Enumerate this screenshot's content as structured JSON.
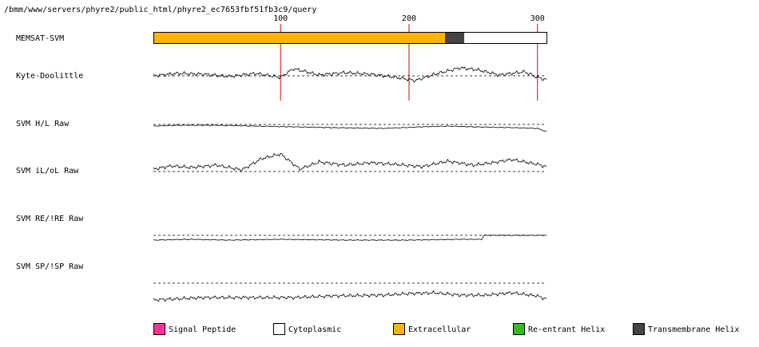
{
  "title": "/bmm/www/servers/phyre2/public_html/phyre2_ec7653fbf51fb3c9/query",
  "colors": {
    "signal_peptide": "#ff3399",
    "cytoplasmic": "#ffffff",
    "extracellular": "#ffb400",
    "reentrant_helix": "#33bb22",
    "transmembrane_helix": "#444444",
    "tick_line": "#dd0000"
  },
  "chart_data": {
    "type": "line",
    "sequence_length": 307,
    "x_ticks": [
      100,
      200,
      300
    ],
    "tracks": [
      {
        "name": "MEMSAT-SVM",
        "kind": "topology",
        "segments": [
          {
            "type": "Extracellular",
            "start": 1,
            "end": 227
          },
          {
            "type": "Transmembrane Helix",
            "start": 228,
            "end": 242
          },
          {
            "type": "Cytoplasmic",
            "start": 243,
            "end": 307
          }
        ]
      },
      {
        "name": "Kyte-Doolittle",
        "kind": "profile",
        "baseline": 0,
        "x": [
          1,
          20,
          40,
          60,
          80,
          100,
          110,
          130,
          150,
          170,
          190,
          205,
          220,
          240,
          255,
          270,
          290,
          300,
          307
        ],
        "values": [
          0,
          0.3,
          0.2,
          -0.1,
          0.3,
          -0.2,
          0.9,
          0.1,
          0.4,
          0.2,
          -0.2,
          -0.6,
          0.2,
          1.0,
          0.7,
          0.1,
          0.5,
          -0.2,
          -0.5
        ]
      },
      {
        "name": "SVM H/L Raw",
        "kind": "profile",
        "baseline": 0,
        "x": [
          1,
          20,
          50,
          80,
          110,
          140,
          180,
          210,
          230,
          250,
          280,
          300,
          307
        ],
        "values": [
          -0.2,
          -0.1,
          -0.1,
          -0.2,
          -0.3,
          -0.4,
          -0.5,
          -0.3,
          -0.2,
          -0.3,
          -0.4,
          -0.5,
          -0.9
        ]
      },
      {
        "name": "SVM iL/oL Raw",
        "kind": "profile",
        "baseline": 0,
        "x": [
          1,
          15,
          30,
          50,
          70,
          85,
          100,
          115,
          130,
          150,
          170,
          190,
          210,
          230,
          250,
          265,
          280,
          300,
          307
        ],
        "values": [
          0.3,
          0.7,
          0.5,
          0.8,
          0.2,
          1.6,
          2.2,
          0.3,
          1.2,
          0.8,
          1.1,
          0.9,
          0.6,
          1.3,
          0.8,
          1.1,
          1.5,
          0.9,
          0.6
        ]
      },
      {
        "name": "SVM RE/!RE Raw",
        "kind": "profile",
        "baseline": 0,
        "x": [
          1,
          30,
          60,
          100,
          150,
          200,
          240,
          257,
          258,
          307
        ],
        "values": [
          -0.6,
          -0.5,
          -0.6,
          -0.5,
          -0.6,
          -0.6,
          -0.5,
          -0.5,
          0.0,
          0.0
        ]
      },
      {
        "name": "SVM SP/!SP Raw",
        "kind": "profile",
        "baseline": 0,
        "x": [
          1,
          40,
          80,
          110,
          140,
          180,
          200,
          220,
          240,
          260,
          280,
          300,
          307
        ],
        "values": [
          -2.1,
          -1.8,
          -1.8,
          -1.8,
          -1.6,
          -1.5,
          -1.3,
          -1.2,
          -1.5,
          -1.5,
          -1.2,
          -1.6,
          -2.0
        ]
      }
    ],
    "legend": [
      "Signal Peptide",
      "Cytoplasmic",
      "Extracellular",
      "Re-entrant Helix",
      "Transmembrane Helix"
    ]
  }
}
